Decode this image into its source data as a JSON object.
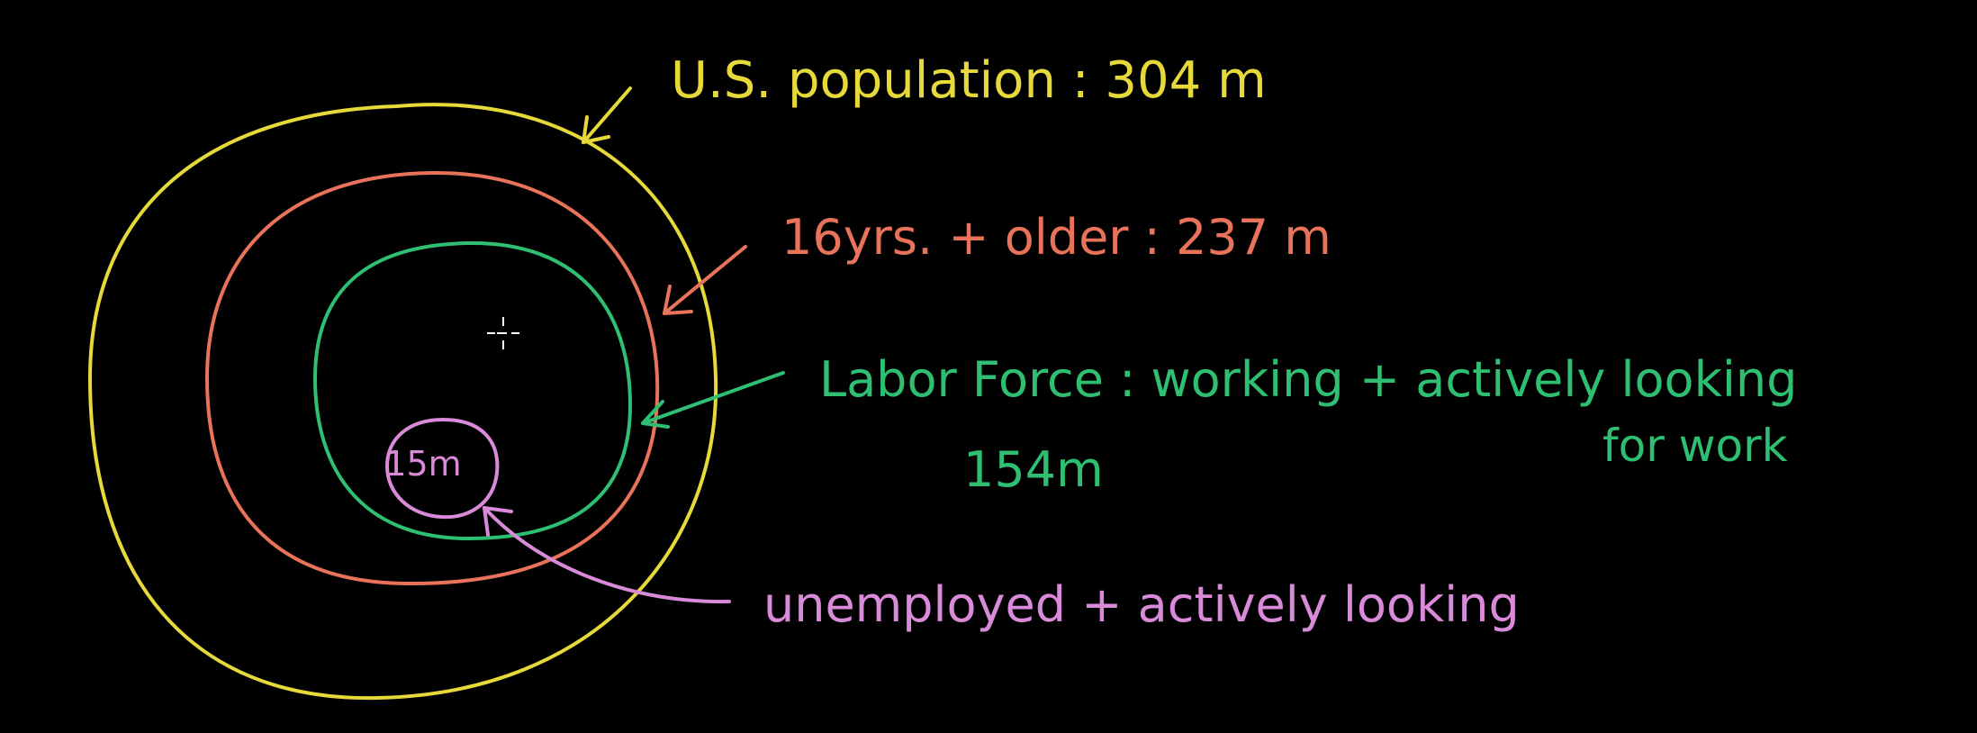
{
  "colors": {
    "background": "#000000",
    "us_population": "#e6d93a",
    "age_16_plus": "#e8735a",
    "labor_force": "#2fbf72",
    "unemployed": "#d98ad9"
  },
  "labels": {
    "us_population": "U.S. population : 304 m",
    "age_16_plus": "16yrs. + older : 237 m",
    "labor_force_line1": "Labor Force : working + actively looking",
    "labor_force_line2": "for work",
    "labor_force_value": "154m",
    "unemployed_circle": "15m",
    "unemployed": "unemployed + actively looking"
  },
  "icons": {
    "cursor": "crosshair-cursor-icon"
  }
}
